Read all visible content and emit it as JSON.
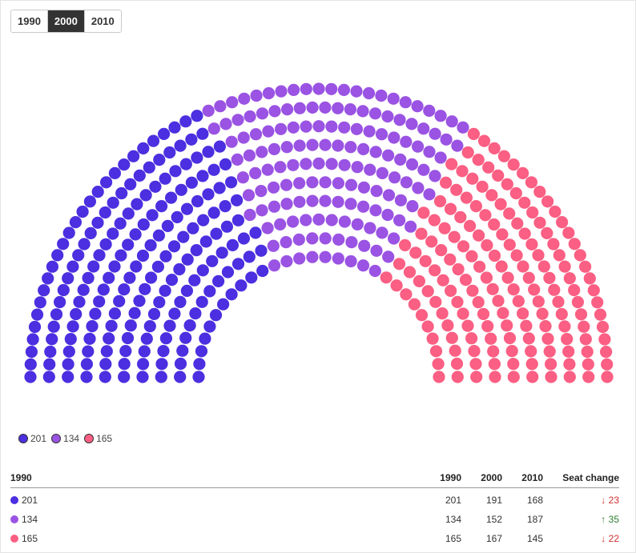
{
  "tabs": [
    {
      "label": "1990",
      "active": false
    },
    {
      "label": "2000",
      "active": true
    },
    {
      "label": "2010",
      "active": false
    }
  ],
  "legend": [
    {
      "label": "201",
      "color": "#4b2fe0"
    },
    {
      "label": "134",
      "color": "#9a53e3"
    },
    {
      "label": "165",
      "color": "#fb5f83"
    }
  ],
  "table": {
    "headers": [
      "1990",
      "1990",
      "2000",
      "2010",
      "Seat change"
    ],
    "rows": [
      {
        "label": "201",
        "color": "#4b2fe0",
        "v1990": "201",
        "v2000": "191",
        "v2010": "168",
        "arrow": "↓",
        "change": "23",
        "direction": "down"
      },
      {
        "label": "134",
        "color": "#9a53e3",
        "v1990": "134",
        "v2000": "152",
        "v2010": "187",
        "arrow": "↑",
        "change": "35",
        "direction": "up"
      },
      {
        "label": "165",
        "color": "#fb5f83",
        "v1990": "165",
        "v2000": "167",
        "v2010": "145",
        "arrow": "↓",
        "change": "22",
        "direction": "down"
      }
    ]
  },
  "chart_data": {
    "type": "parliament",
    "selected_year": "2000",
    "total_seats": 510,
    "series": [
      {
        "name": "201",
        "values": [
          201,
          191,
          168
        ],
        "color": "#4b2fe0"
      },
      {
        "name": "134",
        "values": [
          134,
          152,
          187
        ],
        "color": "#9a53e3"
      },
      {
        "name": "165",
        "values": [
          165,
          167,
          145
        ],
        "color": "#fb5f83"
      }
    ],
    "categories": [
      "1990",
      "2000",
      "2010"
    ],
    "seats_shown": [
      191,
      152,
      167
    ]
  }
}
